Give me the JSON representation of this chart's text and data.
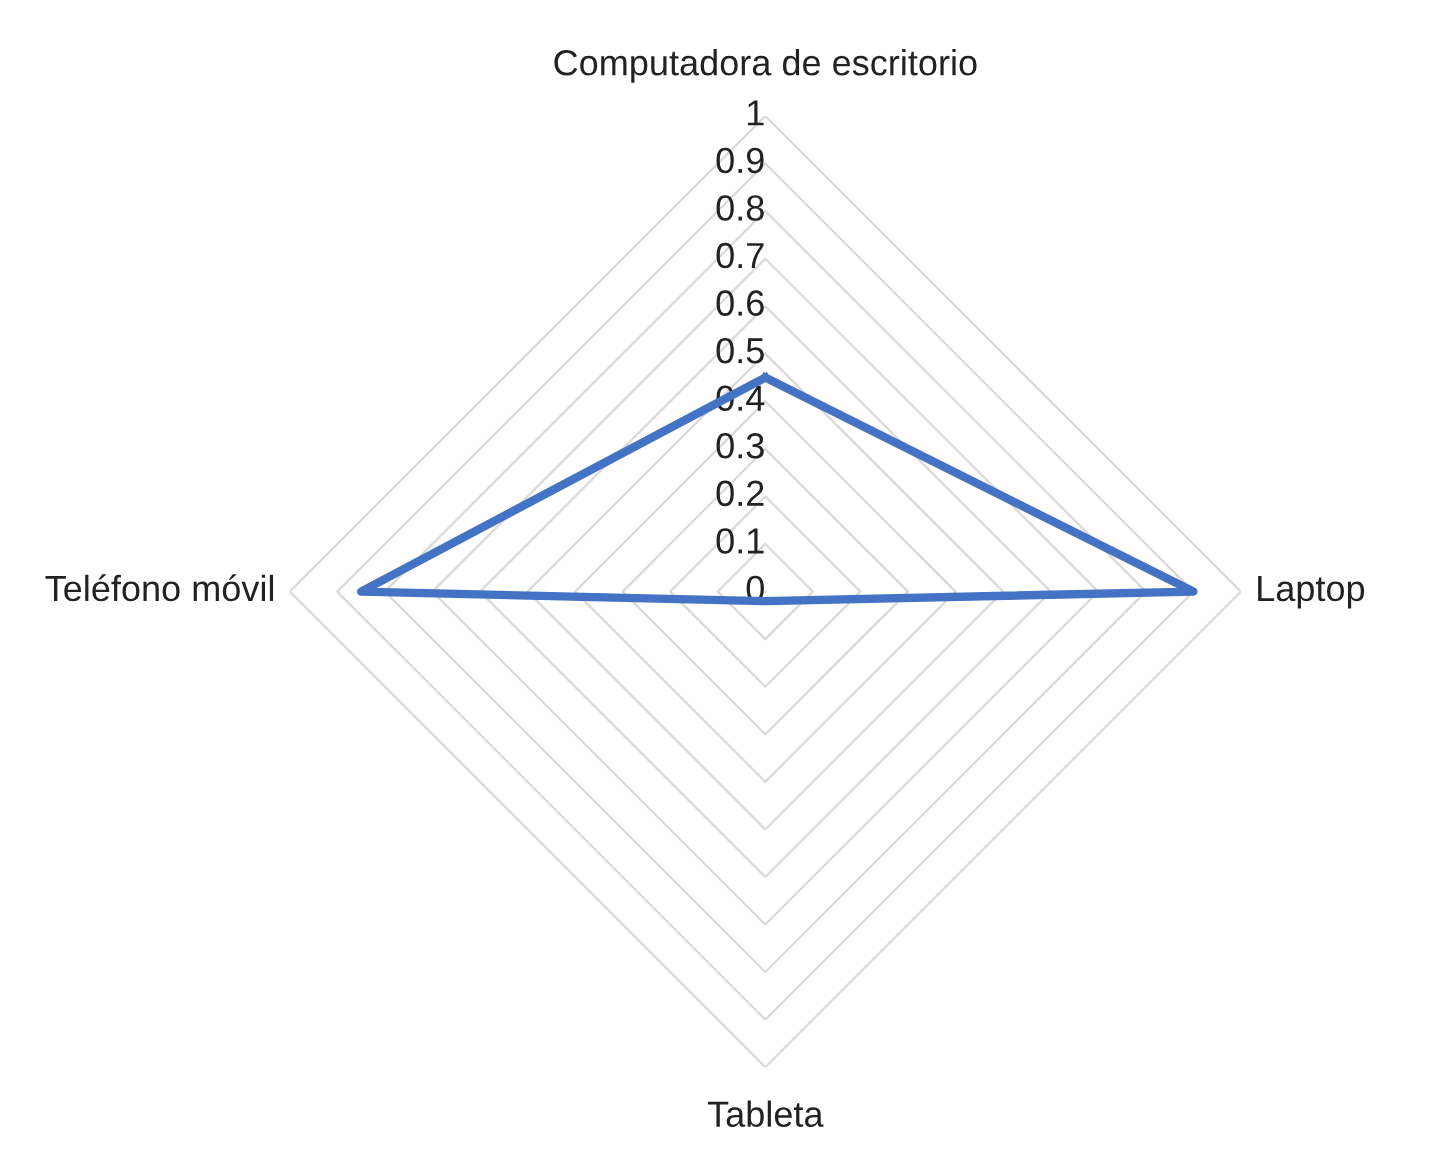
{
  "chart_data": {
    "type": "radar",
    "categories": [
      "Computadora de escritorio",
      "Laptop",
      "Tableta",
      "Teléfono móvil"
    ],
    "series": [
      {
        "color": "#4472c4",
        "values": [
          0.45,
          0.9,
          0.02,
          0.85
        ]
      }
    ],
    "ylim": [
      0,
      1
    ],
    "yticks": [
      0,
      0.1,
      0.2,
      0.3,
      0.4,
      0.5,
      0.6,
      0.7,
      0.8,
      0.9,
      1
    ],
    "grid": true
  }
}
